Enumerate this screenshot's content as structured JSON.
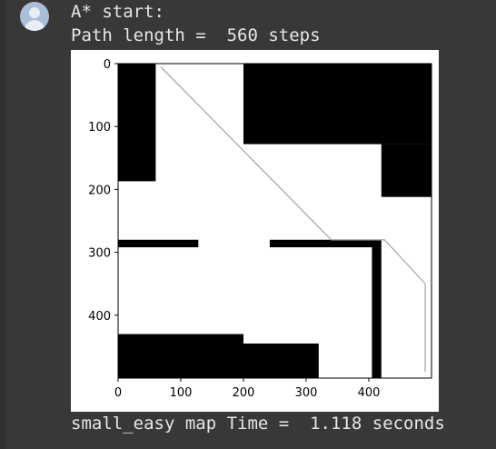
{
  "output": {
    "line1": "A* start:",
    "line2": "Path length =  560 steps",
    "line3": "small_easy map Time =  1.118 seconds"
  },
  "avatar_icon": "user-avatar-icon",
  "chart_data": {
    "type": "heatmap",
    "title": "",
    "xlabel": "",
    "ylabel": "",
    "xlim": [
      0,
      500
    ],
    "ylim": [
      500,
      0
    ],
    "x_ticks": [
      "0",
      "100",
      "200",
      "300",
      "400"
    ],
    "y_ticks": [
      "0",
      "100",
      "200",
      "300",
      "400"
    ],
    "colormap": [
      "#000000",
      "#ffffff"
    ],
    "obstacles": [
      {
        "x": [
          0,
          60
        ],
        "y": [
          0,
          187
        ]
      },
      {
        "x": [
          200,
          500
        ],
        "y": [
          0,
          128
        ]
      },
      {
        "x": [
          420,
          500
        ],
        "y": [
          128,
          212
        ]
      },
      {
        "x": [
          0,
          128
        ],
        "y": [
          280,
          292
        ]
      },
      {
        "x": [
          242,
          420
        ],
        "y": [
          280,
          292
        ]
      },
      {
        "x": [
          405,
          420
        ],
        "y": [
          292,
          500
        ]
      },
      {
        "x": [
          0,
          200
        ],
        "y": [
          430,
          500
        ]
      },
      {
        "x": [
          200,
          320
        ],
        "y": [
          445,
          500
        ]
      }
    ],
    "path": [
      [
        68,
        5
      ],
      [
        340,
        280
      ],
      [
        425,
        280
      ],
      [
        490,
        350
      ],
      [
        490,
        490
      ]
    ],
    "path_color": "#aaaaaa"
  }
}
